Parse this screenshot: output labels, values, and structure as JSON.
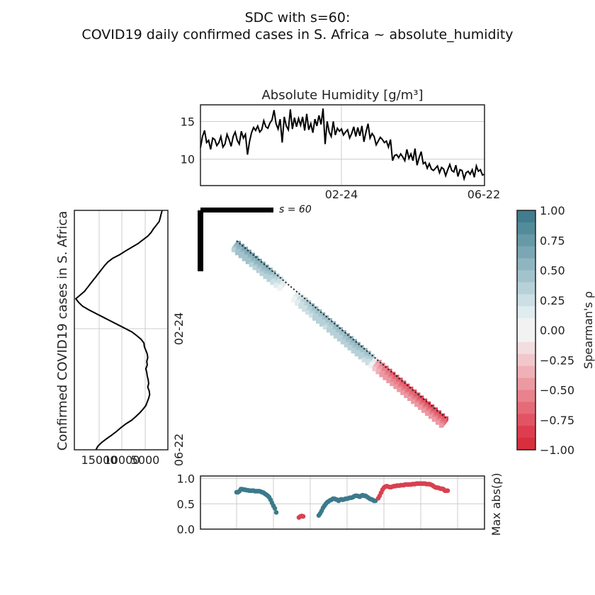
{
  "figure": {
    "title_line1": "SDC with s=60:",
    "title_line2": "COVID19 daily confirmed cases in S. Africa ~ absolute_humidity"
  },
  "chart_data": [
    {
      "type": "line",
      "panel": "top",
      "title": "Absolute Humidity [g/m³]",
      "x_tick_labels": [
        "02-24",
        "06-22"
      ],
      "y_ticks": [
        10,
        15
      ],
      "ylim": [
        6.5,
        17.2
      ],
      "grid": true,
      "color": "#000000",
      "values": [
        11.5,
        13,
        13.8,
        12.2,
        12.5,
        11.3,
        12.8,
        12.6,
        11.8,
        12.2,
        13.0,
        11.6,
        12.0,
        13.3,
        12.6,
        11.7,
        13.0,
        13.6,
        12.5,
        12.0,
        13.7,
        12.8,
        13.3,
        10.6,
        12.3,
        13.5,
        14.2,
        13.8,
        14.4,
        13.6,
        13.9,
        15.1,
        14.3,
        14.1,
        14.8,
        15.2,
        16.5,
        14.7,
        14.0,
        15.3,
        12.2,
        15.6,
        14.4,
        13.9,
        16.6,
        14.0,
        15.5,
        14.3,
        15.4,
        14.5,
        15.6,
        13.8,
        16.0,
        13.9,
        14.7,
        13.5,
        15.3,
        14.4,
        15.8,
        14.6,
        16.7,
        12.0,
        15.0,
        13.6,
        13.0,
        15.0,
        13.2,
        14.1,
        13.7,
        14.0,
        13.2,
        13.6,
        13.9,
        12.8,
        13.4,
        14.3,
        13.0,
        14.2,
        13.1,
        14.4,
        12.3,
        13.6,
        14.7,
        12.8,
        13.4,
        13.0,
        11.9,
        12.4,
        12.9,
        12.6,
        12.2,
        12.4,
        11.6,
        12.6,
        9.8,
        10.5,
        10.6,
        10.2,
        10.7,
        10.3,
        9.8,
        11.3,
        10.1,
        10.7,
        9.8,
        11.4,
        9.2,
        10.2,
        11.0,
        9.4,
        9.6,
        8.8,
        9.4,
        8.7,
        8.5,
        8.8,
        9.1,
        8.2,
        8.9,
        8.7,
        7.8,
        8.6,
        9.3,
        8.5,
        8.3,
        9.2,
        7.7,
        8.6,
        8.5,
        7.4,
        8.2,
        8.4,
        8.0,
        8.6,
        7.6,
        9.1,
        8.4,
        8.6,
        7.9,
        8.0
      ]
    },
    {
      "type": "line",
      "panel": "left",
      "ylabel": "Confirmed COVID19 cases in S. Africa",
      "x_tick_labels": [
        "15000",
        "10000",
        "5000"
      ],
      "y_tick_labels": [
        "02-24",
        "06-22"
      ],
      "xlim": [
        19500,
        0
      ],
      "grid": true,
      "color": "#000000",
      "values": [
        1200,
        1400,
        1600,
        1800,
        2400,
        3000,
        3500,
        4200,
        5200,
        6200,
        7500,
        8800,
        10000,
        11500,
        12500,
        13200,
        13800,
        14400,
        15000,
        15600,
        16200,
        16800,
        17400,
        18300,
        19200,
        18600,
        17800,
        16500,
        15000,
        13500,
        12000,
        10500,
        9000,
        7500,
        6500,
        5600,
        5000,
        4900,
        4600,
        4300,
        4200,
        4400,
        4300,
        4600,
        4400,
        4300,
        4100,
        4000,
        4200,
        3900,
        3800,
        4000,
        4300,
        4600,
        5200,
        5900,
        6700,
        7600,
        8800,
        9800,
        10700,
        11700,
        12800,
        13800,
        14600,
        15000
      ]
    },
    {
      "type": "heatmap",
      "panel": "main",
      "annotation": "s = 60",
      "colorbar_label": "Spearman's ρ",
      "colorbar_ticks": [
        1.0,
        0.75,
        0.5,
        0.25,
        0.0,
        -0.25,
        -0.5,
        -0.75,
        -1.0
      ],
      "colorbar_tick_labels": [
        "1.00",
        "0.75",
        "0.50",
        "0.25",
        "0.00",
        "−0.25",
        "−0.50",
        "−0.75",
        "−1.00"
      ],
      "colorbar_colors": [
        "#417d8e",
        "#538b9b",
        "#6799a7",
        "#7ba7b4",
        "#8fb5c0",
        "#a3c3cc",
        "#b7d1d8",
        "#cbdfe4",
        "#dfecf0",
        "#f2f2f2",
        "#f2f2f2",
        "#f2dde0",
        "#f1c7cc",
        "#efb0b7",
        "#ec99a2",
        "#e9828d",
        "#e56b78",
        "#e15463",
        "#dd3d4f",
        "#d82e3d"
      ],
      "colorbar_color_values": [
        1.0,
        0.9,
        0.8,
        0.7,
        0.6,
        0.5,
        0.4,
        0.3,
        0.2,
        0.1,
        -0.1,
        -0.2,
        -0.3,
        -0.4,
        -0.5,
        -0.6,
        -0.7,
        -0.8,
        -0.9,
        -1.0
      ],
      "diagonal_values": [
        0.75,
        0.76,
        0.77,
        0.77,
        0.76,
        0.75,
        0.74,
        0.72,
        0.7,
        0.66,
        0.6,
        0.5,
        0.38,
        0.2,
        0,
        -0.05,
        0,
        0.2,
        0.34,
        0.45,
        0.5,
        0.55,
        0.58,
        0.6,
        0.6,
        0.6,
        0.58,
        0.6,
        0.62,
        0.63,
        0.64,
        0.65,
        0.66,
        0.66,
        0.65,
        0.63,
        0.6,
        0.58,
        0.5,
        0.2,
        -0.55,
        -0.68,
        -0.76,
        -0.8,
        -0.83,
        -0.85,
        -0.86,
        -0.87,
        -0.88,
        -0.88,
        -0.88,
        -0.89,
        -0.9,
        -0.9,
        -0.91,
        -0.91,
        -0.91,
        -0.9,
        -0.9,
        -0.88
      ]
    },
    {
      "type": "scatter",
      "panel": "bottom",
      "ylabel": "Max abs(ρ)",
      "y_ticks": [
        0.0,
        0.5,
        1.0
      ],
      "y_tick_labels": [
        "0.0",
        "0.5",
        "1.0"
      ],
      "ylim": [
        0,
        1.05
      ],
      "grid": true,
      "positive_color": "#3b7a8c",
      "negative_color": "#d8414f",
      "series": [
        {
          "sign": "positive",
          "x": [
            0,
            2,
            4,
            6,
            8,
            10,
            12,
            14,
            16,
            18,
            20,
            22,
            24,
            26,
            28,
            30,
            32,
            34,
            36,
            38,
            40,
            42,
            44,
            46,
            48,
            50,
            52,
            54,
            56
          ],
          "values": [
            0.73,
            0.73,
            0.75,
            0.79,
            0.79,
            0.78,
            0.78,
            0.77,
            0.77,
            0.76,
            0.76,
            0.76,
            0.76,
            0.75,
            0.75,
            0.75,
            0.75,
            0.74,
            0.73,
            0.72,
            0.7,
            0.68,
            0.66,
            0.63,
            0.58,
            0.52,
            0.46,
            0.41,
            0.33
          ]
        },
        {
          "sign": "negative",
          "x": [
            88,
            90,
            92,
            94
          ],
          "values": [
            0.23,
            0.25,
            0.26,
            0.25
          ]
        },
        {
          "sign": "positive",
          "x": [
            116,
            118,
            120,
            122,
            124,
            126,
            128,
            130,
            132,
            134,
            136,
            138,
            140,
            142,
            144,
            146,
            148,
            150,
            152,
            154,
            156,
            158,
            160,
            162,
            164,
            166,
            168,
            170,
            172,
            174,
            176,
            178,
            180,
            182,
            184,
            186,
            188,
            190,
            192,
            194,
            196
          ],
          "values": [
            0.27,
            0.31,
            0.36,
            0.42,
            0.46,
            0.5,
            0.53,
            0.55,
            0.57,
            0.58,
            0.6,
            0.6,
            0.59,
            0.58,
            0.56,
            0.58,
            0.59,
            0.58,
            0.59,
            0.6,
            0.6,
            0.61,
            0.62,
            0.62,
            0.63,
            0.65,
            0.66,
            0.66,
            0.65,
            0.64,
            0.66,
            0.67,
            0.66,
            0.66,
            0.64,
            0.62,
            0.6,
            0.59,
            0.58,
            0.56,
            0.56
          ]
        },
        {
          "sign": "negative",
          "x": [
            200,
            202,
            204,
            206,
            208,
            210,
            212,
            214,
            216,
            218,
            220,
            222,
            224,
            226,
            228,
            230,
            232,
            234,
            236,
            238,
            240,
            242,
            244,
            246,
            248,
            250,
            252,
            254,
            256,
            258,
            260,
            262,
            264,
            266,
            268,
            270,
            272,
            274,
            276,
            278,
            280,
            282,
            284,
            286,
            288,
            290,
            292,
            294,
            296,
            298
          ],
          "values": [
            0.61,
            0.66,
            0.72,
            0.78,
            0.82,
            0.84,
            0.85,
            0.84,
            0.83,
            0.83,
            0.84,
            0.85,
            0.85,
            0.86,
            0.86,
            0.86,
            0.87,
            0.87,
            0.87,
            0.88,
            0.88,
            0.88,
            0.88,
            0.88,
            0.89,
            0.89,
            0.89,
            0.9,
            0.9,
            0.9,
            0.9,
            0.9,
            0.9,
            0.9,
            0.89,
            0.89,
            0.89,
            0.88,
            0.87,
            0.85,
            0.83,
            0.82,
            0.82,
            0.81,
            0.8,
            0.8,
            0.79,
            0.76,
            0.76,
            0.76
          ]
        }
      ]
    }
  ]
}
